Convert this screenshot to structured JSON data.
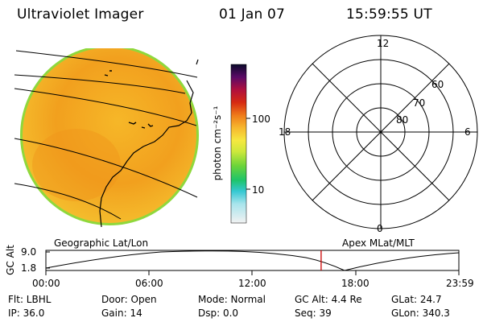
{
  "header": {
    "title": "Ultraviolet Imager",
    "date": "01 Jan 07",
    "time": "15:59:55 UT"
  },
  "colorbar": {
    "unit_label": "photon cm⁻²s⁻¹",
    "ticks": [
      "100",
      "10"
    ]
  },
  "polar_plot": {
    "mlt_labels": {
      "top": "12",
      "left": "18",
      "right": "6",
      "bottom": "0"
    },
    "lat_labels": [
      "60",
      "70",
      "80"
    ]
  },
  "altitude_plot": {
    "axis_label": "GC Alt",
    "y_ticks": [
      "9.0",
      "1.8"
    ],
    "left_title": "Geographic Lat/Lon",
    "right_title": "Apex MLat/MLT",
    "x_ticks": [
      "00:00",
      "06:00",
      "12:00",
      "18:00",
      "23:59"
    ],
    "current_marker_fraction": 0.6665,
    "colors": {
      "marker": "#cc0000"
    }
  },
  "status": {
    "filter": "Flt: LBHL",
    "door": "Door: Open",
    "mode": "Mode: Normal",
    "gc_alt": "GC Alt: 4.4 Re",
    "glat": "GLat:  24.7",
    "ip": "IP: 36.0",
    "gain": "Gain: 14",
    "dsp": "Dsp:     0.0",
    "seq": "Seq: 39",
    "glon": "GLon: 340.3"
  },
  "colors": {
    "disk_main": "#f4a21c",
    "disk_light": "#f7c431",
    "disk_edge": "#8fd83c"
  }
}
